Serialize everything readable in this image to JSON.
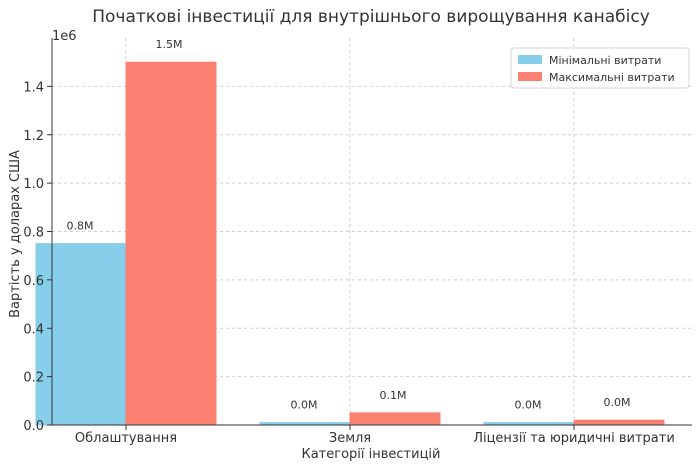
{
  "chart_data": {
    "type": "bar",
    "title": "Початкові інвестиції для внутрішнього вирощування канабісу",
    "xlabel": "Категорії інвестицій",
    "ylabel": "Вартість у доларах США",
    "y_scale_label": "1e6",
    "categories": [
      "Облаштування",
      "Земля",
      "Ліцензії та юридичні витрати"
    ],
    "series": [
      {
        "name": "Мінімальні витрати",
        "values": [
          750000,
          10000,
          10000
        ],
        "data_labels": [
          "0.8M",
          "0.0M",
          "0.0M"
        ],
        "color": "#87ceeb"
      },
      {
        "name": "Максимальні витрати",
        "values": [
          1500000,
          50000,
          20000
        ],
        "data_labels": [
          "1.5M",
          "0.1M",
          "0.0M"
        ],
        "color": "#fa8072"
      }
    ],
    "ylim": [
      0,
      1600000
    ],
    "yticks": [
      0,
      200000,
      400000,
      600000,
      800000,
      1000000,
      1200000,
      1400000
    ],
    "ytick_labels": [
      "0.0",
      "0.2",
      "0.4",
      "0.6",
      "0.8",
      "1.0",
      "1.2",
      "1.4"
    ],
    "grid": true,
    "legend_position": "top-right"
  }
}
